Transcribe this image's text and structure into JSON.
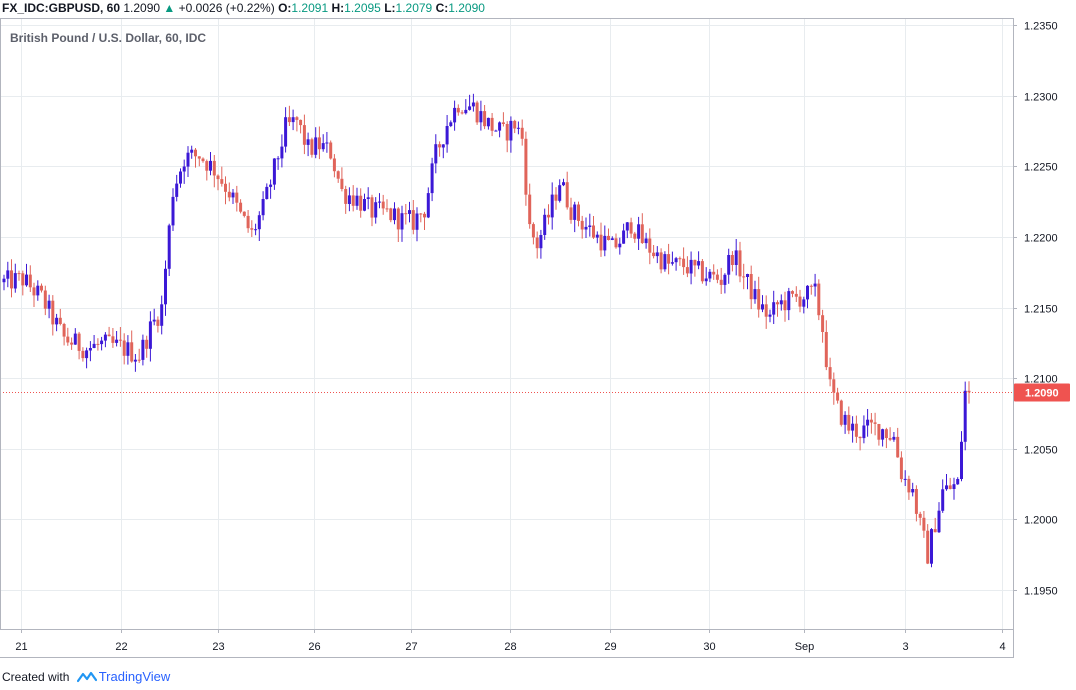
{
  "header": {
    "symbol": "FX_IDC:GBPUSD, 60",
    "last": "1.2090",
    "arrow": "▲",
    "change": "+0.0026 (+0.22%)",
    "o_label": "O:",
    "o_value": "1.2091",
    "h_label": "H:",
    "h_value": "1.2095",
    "l_label": "L:",
    "l_value": "1.2079",
    "c_label": "C:",
    "c_value": "1.2090"
  },
  "footer": {
    "created_with": "Created with",
    "brand": "TradingView"
  },
  "colors": {
    "up": "#3b18d6",
    "down": "#e0645a",
    "grid": "#e8ecef",
    "price_tag": "#ef5350",
    "border": "#b2b5be"
  },
  "chart_data": {
    "type": "candlestick",
    "title": "British Pound / U.S. Dollar, 60, IDC",
    "xlabel": "",
    "ylabel": "",
    "ylim": [
      1.1925,
      1.2355
    ],
    "y_ticks": [
      "1.1950",
      "1.2000",
      "1.2050",
      "1.2100",
      "1.2150",
      "1.2200",
      "1.2250",
      "1.2300",
      "1.2350"
    ],
    "x_ticks": [
      "21",
      "22",
      "23",
      "26",
      "27",
      "28",
      "29",
      "30",
      "Sep",
      "3",
      "4"
    ],
    "last_price": "1.2090",
    "last_price_value": 1.209,
    "grid": true,
    "keypoints": [
      [
        0,
        1.2168
      ],
      [
        5,
        1.217
      ],
      [
        10,
        1.2157
      ],
      [
        16,
        1.2128
      ],
      [
        22,
        1.2121
      ],
      [
        26,
        1.2124
      ],
      [
        31,
        1.2122
      ],
      [
        36,
        1.2116
      ],
      [
        39,
        1.2135
      ],
      [
        42,
        1.215
      ],
      [
        45,
        1.2233
      ],
      [
        48,
        1.2256
      ],
      [
        52,
        1.2258
      ],
      [
        56,
        1.2248
      ],
      [
        60,
        1.2232
      ],
      [
        63,
        1.2215
      ],
      [
        66,
        1.2202
      ],
      [
        69,
        1.222
      ],
      [
        72,
        1.2248
      ],
      [
        75,
        1.2277
      ],
      [
        78,
        1.2282
      ],
      [
        81,
        1.2262
      ],
      [
        84,
        1.2265
      ],
      [
        87,
        1.226
      ],
      [
        90,
        1.2232
      ],
      [
        94,
        1.2227
      ],
      [
        98,
        1.2218
      ],
      [
        102,
        1.2217
      ],
      [
        106,
        1.2212
      ],
      [
        109,
        1.2211
      ],
      [
        112,
        1.222
      ],
      [
        115,
        1.2258
      ],
      [
        118,
        1.228
      ],
      [
        121,
        1.2295
      ],
      [
        125,
        1.2292
      ],
      [
        129,
        1.228
      ],
      [
        133,
        1.2273
      ],
      [
        136,
        1.228
      ],
      [
        138,
        1.227
      ],
      [
        140,
        1.2205
      ],
      [
        142,
        1.2195
      ],
      [
        145,
        1.2215
      ],
      [
        148,
        1.224
      ],
      [
        151,
        1.222
      ],
      [
        154,
        1.221
      ],
      [
        158,
        1.22
      ],
      [
        162,
        1.2192
      ],
      [
        165,
        1.22
      ],
      [
        167,
        1.221
      ],
      [
        170,
        1.2197
      ],
      [
        174,
        1.2187
      ],
      [
        177,
        1.218
      ],
      [
        181,
        1.218
      ],
      [
        184,
        1.2176
      ],
      [
        188,
        1.2172
      ],
      [
        191,
        1.217
      ],
      [
        194,
        1.2188
      ],
      [
        197,
        1.2172
      ],
      [
        201,
        1.2152
      ],
      [
        204,
        1.2143
      ],
      [
        206,
        1.2152
      ],
      [
        209,
        1.2155
      ],
      [
        213,
        1.2158
      ],
      [
        216,
        1.216
      ],
      [
        218,
        1.2135
      ],
      [
        220,
        1.2093
      ],
      [
        222,
        1.2078
      ],
      [
        225,
        1.2065
      ],
      [
        228,
        1.2062
      ],
      [
        231,
        1.2065
      ],
      [
        234,
        1.2064
      ],
      [
        237,
        1.2058
      ],
      [
        239,
        1.2033
      ],
      [
        242,
        1.202
      ],
      [
        244,
        1.1995
      ],
      [
        246,
        1.1975
      ],
      [
        248,
        1.1998
      ],
      [
        250,
        1.202
      ],
      [
        252,
        1.2022
      ],
      [
        254,
        1.2025
      ],
      [
        256,
        1.209
      ],
      [
        257,
        1.209
      ]
    ]
  }
}
